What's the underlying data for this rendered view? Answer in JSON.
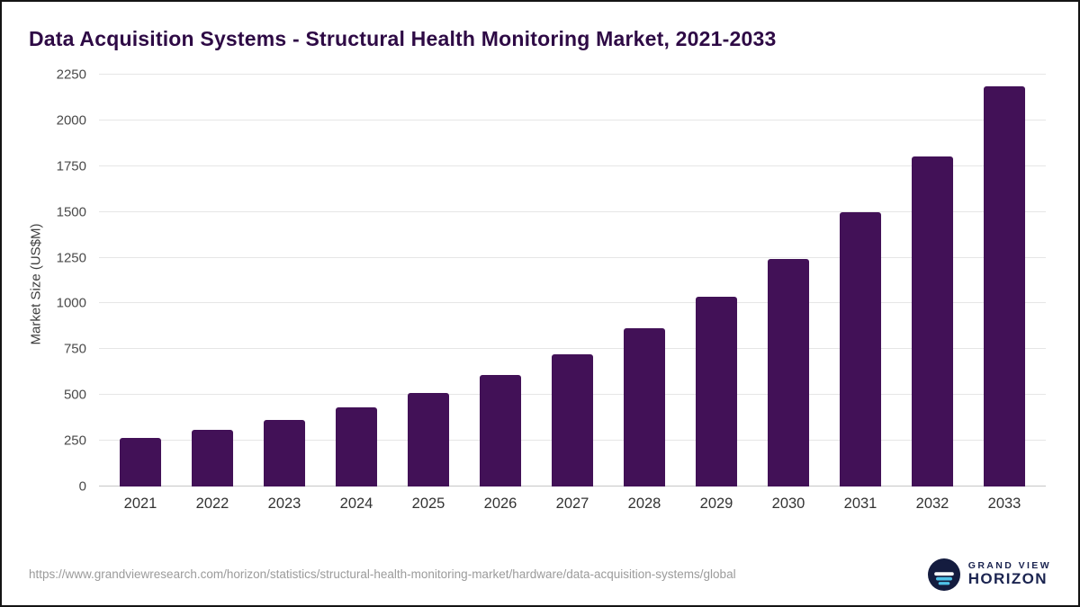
{
  "chart_data": {
    "type": "bar",
    "title": "Data Acquisition Systems - Structural Health Monitoring Market, 2021-2033",
    "xlabel": "",
    "ylabel": "Market Size (US$M)",
    "categories": [
      "2021",
      "2022",
      "2023",
      "2024",
      "2025",
      "2026",
      "2027",
      "2028",
      "2029",
      "2030",
      "2031",
      "2032",
      "2033"
    ],
    "values": [
      265,
      310,
      365,
      430,
      510,
      610,
      720,
      865,
      1035,
      1245,
      1500,
      1805,
      2185
    ],
    "ylim": [
      0,
      2250
    ],
    "yticks": [
      0,
      250,
      500,
      750,
      1000,
      1250,
      1500,
      1750,
      2000,
      2250
    ],
    "bar_color": "#421157",
    "grid": "horizontal",
    "legend": "none"
  },
  "footer": {
    "source_url": "https://www.grandviewresearch.com/horizon/statistics/structural-health-monitoring-market/hardware/data-acquisition-systems/global",
    "brand_line1": "GRAND VIEW",
    "brand_line2": "HORIZON"
  }
}
